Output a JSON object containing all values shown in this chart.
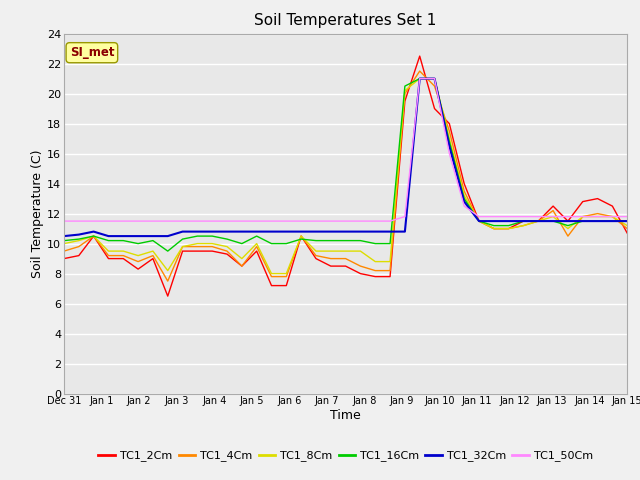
{
  "title": "Soil Temperatures Set 1",
  "xlabel": "Time",
  "ylabel": "Soil Temperature (C)",
  "annotation": "SI_met",
  "ylim": [
    0,
    24
  ],
  "yticks": [
    0,
    2,
    4,
    6,
    8,
    10,
    12,
    14,
    16,
    18,
    20,
    22,
    24
  ],
  "x_labels": [
    "Dec 31",
    "Jan 1",
    "Jan 2",
    "Jan 3",
    "Jan 4",
    "Jan 5",
    "Jan 6",
    "Jan 7",
    "Jan 8",
    "Jan 9",
    "Jan 10",
    "Jan 11",
    "Jan 12",
    "Jan 13",
    "Jan 14",
    "Jan 15"
  ],
  "series_order": [
    "TC1_2Cm",
    "TC1_4Cm",
    "TC1_8Cm",
    "TC1_16Cm",
    "TC1_32Cm",
    "TC1_50Cm"
  ],
  "colors": {
    "TC1_2Cm": "#ff0000",
    "TC1_4Cm": "#ff8800",
    "TC1_8Cm": "#dddd00",
    "TC1_16Cm": "#00cc00",
    "TC1_32Cm": "#0000cc",
    "TC1_50Cm": "#ff88ff"
  },
  "linewidths": {
    "TC1_2Cm": 1.0,
    "TC1_4Cm": 1.0,
    "TC1_8Cm": 1.0,
    "TC1_16Cm": 1.0,
    "TC1_32Cm": 1.5,
    "TC1_50Cm": 1.0
  },
  "TC1_2Cm": [
    9.0,
    9.2,
    10.5,
    9.0,
    9.0,
    8.3,
    9.0,
    6.5,
    9.5,
    9.5,
    9.5,
    9.3,
    8.5,
    9.5,
    7.2,
    7.2,
    10.5,
    9.0,
    8.5,
    8.5,
    8.0,
    7.8,
    7.8,
    19.5,
    22.5,
    19.0,
    18.0,
    14.0,
    11.5,
    11.0,
    11.0,
    11.5,
    11.5,
    12.5,
    11.5,
    12.8,
    13.0,
    12.5,
    10.7
  ],
  "TC1_4Cm": [
    9.5,
    9.8,
    10.5,
    9.2,
    9.2,
    8.8,
    9.2,
    7.5,
    9.8,
    9.8,
    9.8,
    9.5,
    8.5,
    9.8,
    7.8,
    7.8,
    10.5,
    9.2,
    9.0,
    9.0,
    8.5,
    8.2,
    8.2,
    20.0,
    21.5,
    20.5,
    17.5,
    13.5,
    11.5,
    11.0,
    11.0,
    11.2,
    11.5,
    12.2,
    10.5,
    11.8,
    12.0,
    11.8,
    11.0
  ],
  "TC1_8Cm": [
    10.0,
    10.2,
    10.5,
    9.5,
    9.5,
    9.2,
    9.5,
    8.2,
    9.8,
    10.0,
    10.0,
    9.8,
    9.0,
    10.0,
    8.0,
    8.0,
    10.5,
    9.5,
    9.5,
    9.5,
    9.5,
    8.8,
    8.8,
    20.2,
    21.0,
    21.0,
    17.0,
    13.2,
    11.5,
    11.0,
    11.0,
    11.2,
    11.5,
    11.8,
    11.0,
    11.8,
    11.8,
    11.8,
    11.2
  ],
  "TC1_16Cm": [
    10.2,
    10.3,
    10.5,
    10.2,
    10.2,
    10.0,
    10.2,
    9.5,
    10.3,
    10.5,
    10.5,
    10.3,
    10.0,
    10.5,
    10.0,
    10.0,
    10.3,
    10.2,
    10.2,
    10.2,
    10.2,
    10.0,
    10.0,
    20.5,
    21.0,
    21.0,
    16.8,
    13.0,
    11.5,
    11.2,
    11.2,
    11.5,
    11.5,
    11.5,
    11.2,
    11.5,
    11.5,
    11.5,
    11.5
  ],
  "TC1_32Cm": [
    10.5,
    10.6,
    10.8,
    10.5,
    10.5,
    10.5,
    10.5,
    10.5,
    10.8,
    10.8,
    10.8,
    10.8,
    10.8,
    10.8,
    10.8,
    10.8,
    10.8,
    10.8,
    10.8,
    10.8,
    10.8,
    10.8,
    10.8,
    10.8,
    21.0,
    21.0,
    16.5,
    12.8,
    11.5,
    11.5,
    11.5,
    11.5,
    11.5,
    11.5,
    11.5,
    11.5,
    11.5,
    11.5,
    11.5
  ],
  "TC1_50Cm": [
    11.5,
    11.5,
    11.5,
    11.5,
    11.5,
    11.5,
    11.5,
    11.5,
    11.5,
    11.5,
    11.5,
    11.5,
    11.5,
    11.5,
    11.5,
    11.5,
    11.5,
    11.5,
    11.5,
    11.5,
    11.5,
    11.5,
    11.5,
    11.8,
    21.0,
    21.0,
    16.0,
    12.5,
    11.8,
    11.8,
    11.8,
    11.8,
    11.8,
    11.8,
    11.8,
    11.8,
    11.8,
    11.8,
    11.8
  ]
}
